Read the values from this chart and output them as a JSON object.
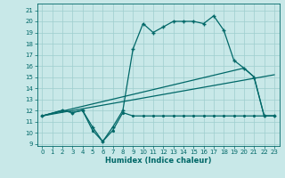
{
  "xlabel": "Humidex (Indice chaleur)",
  "bg_color": "#c8e8e8",
  "grid_color": "#9ecece",
  "line_color": "#006868",
  "xlim": [
    -0.5,
    23.5
  ],
  "ylim": [
    8.8,
    21.6
  ],
  "yticks": [
    9,
    10,
    11,
    12,
    13,
    14,
    15,
    16,
    17,
    18,
    19,
    20,
    21
  ],
  "xticks": [
    0,
    1,
    2,
    3,
    4,
    5,
    6,
    7,
    8,
    9,
    10,
    11,
    12,
    13,
    14,
    15,
    16,
    17,
    18,
    19,
    20,
    21,
    22,
    23
  ],
  "series": [
    {
      "x": [
        0,
        2,
        3,
        4,
        5,
        6,
        7,
        8,
        9,
        10,
        11,
        12,
        13,
        14,
        15,
        16,
        17,
        18,
        19,
        20,
        21,
        22,
        23
      ],
      "y": [
        11.5,
        12.0,
        11.8,
        12.0,
        10.5,
        9.2,
        10.5,
        12.0,
        17.5,
        19.8,
        19.0,
        19.5,
        20.0,
        20.0,
        20.0,
        19.8,
        20.5,
        19.2,
        16.5,
        15.8,
        15.0,
        11.5,
        11.5
      ],
      "marker": "+",
      "markersize": 3.5,
      "lw": 0.9
    },
    {
      "x": [
        0,
        2,
        3,
        4,
        5,
        6,
        7,
        8,
        9,
        10,
        11,
        12,
        13,
        14,
        15,
        16,
        17,
        18,
        19,
        20,
        21,
        22,
        23
      ],
      "y": [
        11.5,
        12.0,
        11.8,
        12.0,
        10.2,
        9.2,
        10.2,
        11.8,
        11.5,
        11.5,
        11.5,
        11.5,
        11.5,
        11.5,
        11.5,
        11.5,
        11.5,
        11.5,
        11.5,
        11.5,
        11.5,
        11.5,
        11.5
      ],
      "marker": ".",
      "markersize": 2.5,
      "lw": 0.9
    },
    {
      "x": [
        0,
        20,
        21,
        22,
        23
      ],
      "y": [
        11.5,
        15.8,
        15.0,
        11.5,
        11.5
      ],
      "marker": null,
      "markersize": 0,
      "lw": 0.9
    },
    {
      "x": [
        0,
        23
      ],
      "y": [
        11.5,
        15.2
      ],
      "marker": null,
      "markersize": 0,
      "lw": 0.9
    }
  ]
}
